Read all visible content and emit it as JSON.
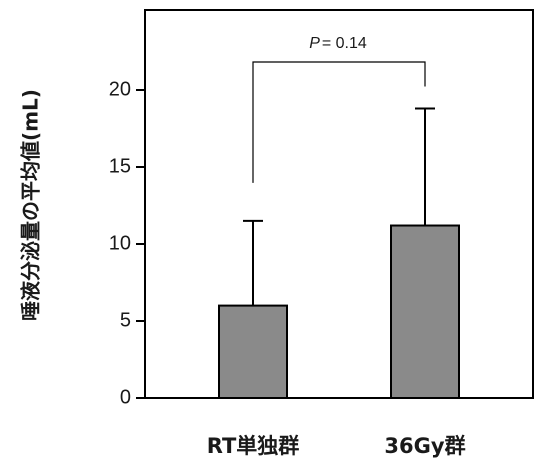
{
  "chart_data": {
    "type": "bar",
    "categories": [
      "RT単独群",
      "36Gy群"
    ],
    "values": [
      6.0,
      11.2
    ],
    "errors": [
      5.5,
      7.6
    ],
    "ylabel": "唾液分泌量の平均値(mL)",
    "ylim": [
      0,
      20
    ],
    "yticks": [
      "0",
      "5",
      "10",
      "15",
      "20"
    ],
    "annotation": {
      "prefix": "P",
      "text": "= 0.14"
    },
    "grid": false,
    "bar_color": "#8a8a8a"
  }
}
